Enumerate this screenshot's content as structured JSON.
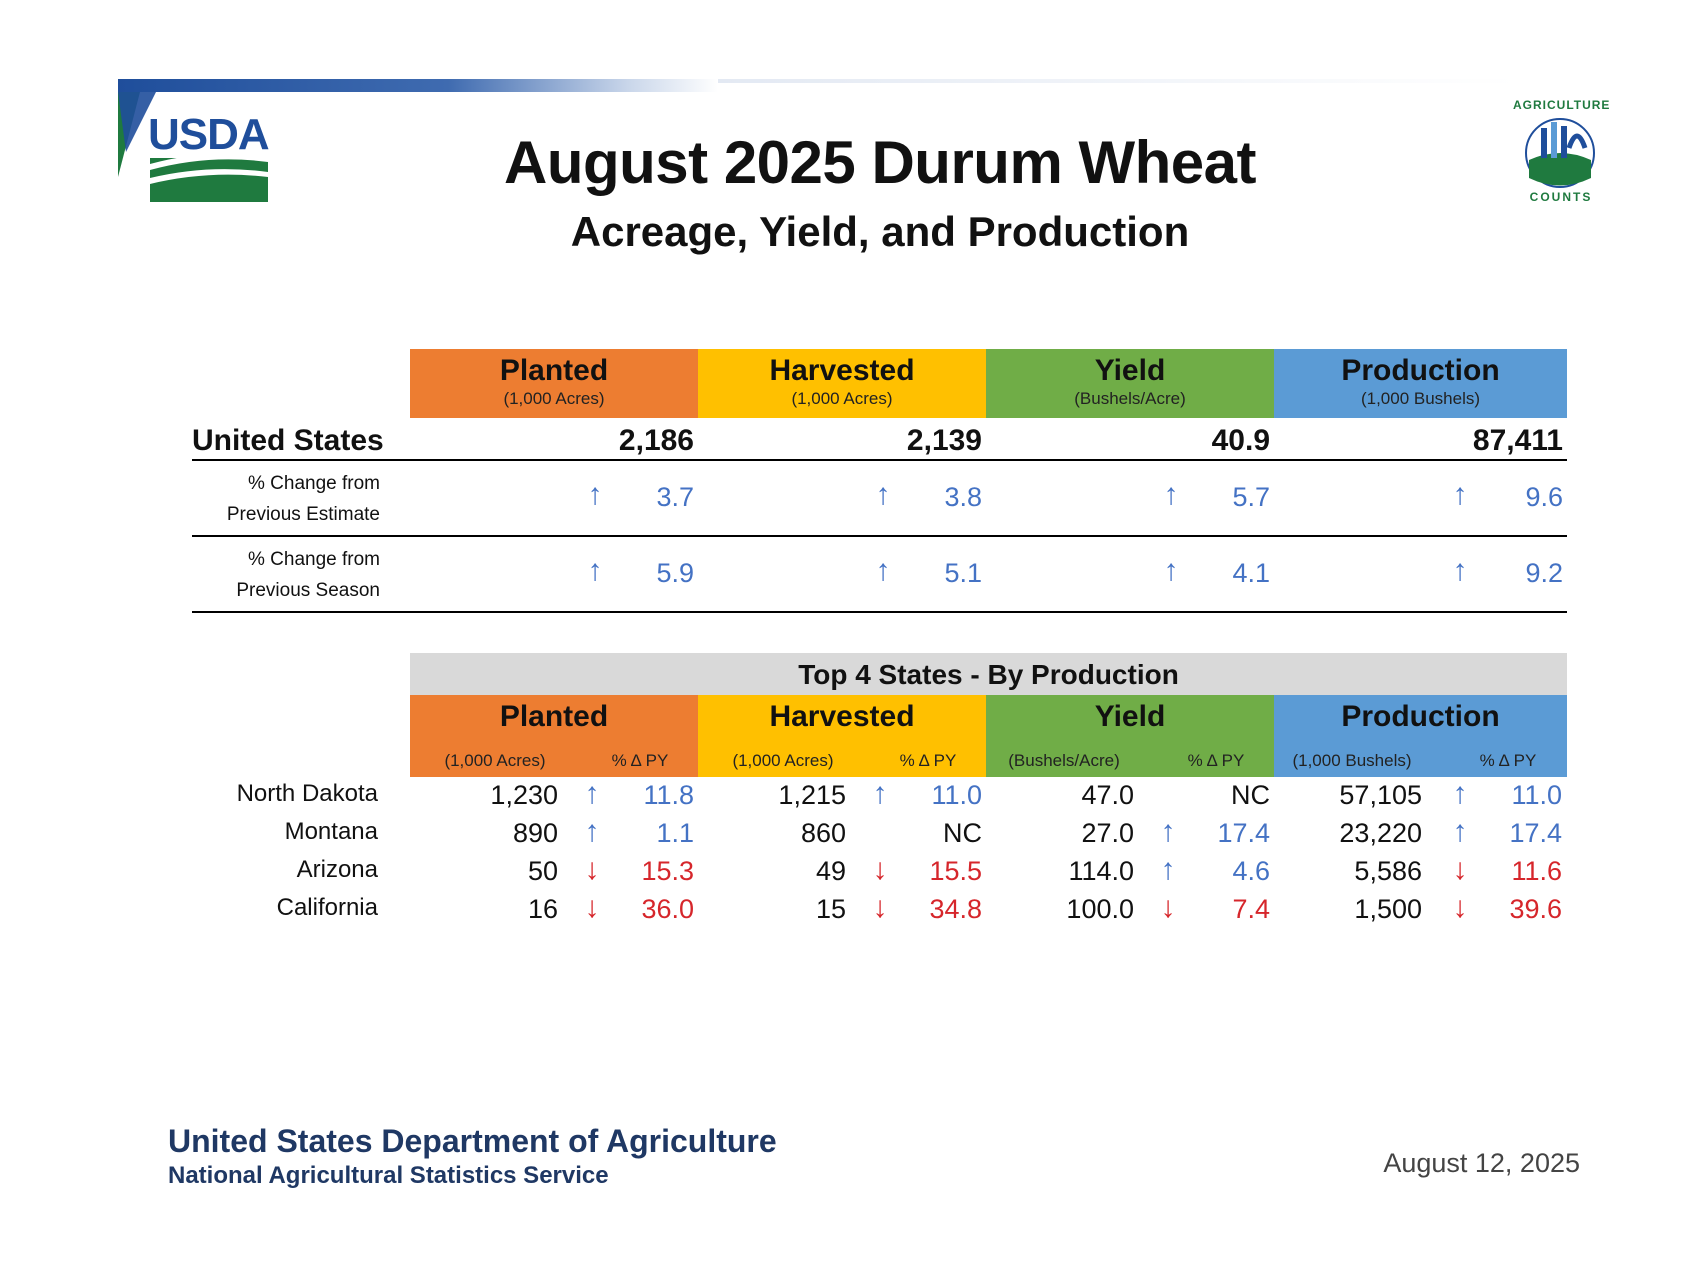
{
  "header": {
    "usda_logo_text": "USDA",
    "title": "August 2025 Durum Wheat",
    "subtitle": "Acreage, Yield, and Production",
    "seal_text_top": "AGRICULTURE",
    "seal_text_bottom": "COUNTS"
  },
  "colors": {
    "planted": "#ed7d31",
    "harvested": "#ffc000",
    "yield": "#70ad47",
    "production": "#5b9bd5",
    "increase": "#4472c4",
    "decrease": "#d6262b",
    "footer": "#1f3864"
  },
  "us_table": {
    "columns": [
      {
        "title": "Planted",
        "unit": "(1,000 Acres)"
      },
      {
        "title": "Harvested",
        "unit": "(1,000 Acres)"
      },
      {
        "title": "Yield",
        "unit": "(Bushels/Acre)"
      },
      {
        "title": "Production",
        "unit": "(1,000 Bushels)"
      }
    ],
    "label": "United States",
    "values": [
      "2,186",
      "2,139",
      "40.9",
      "87,411"
    ],
    "change_rows": [
      {
        "label_line1": "% Change from",
        "label_line2": "Previous Estimate",
        "arrow": "↑",
        "values": [
          "3.7",
          "3.8",
          "5.7",
          "9.6"
        ]
      },
      {
        "label_line1": "% Change from",
        "label_line2": "Previous Season",
        "arrow": "↑",
        "values": [
          "5.9",
          "5.1",
          "4.1",
          "9.2"
        ]
      }
    ]
  },
  "states_table": {
    "banner": "Top 4 States - By Production",
    "columns": [
      {
        "title": "Planted",
        "unit": "(1,000 Acres)",
        "pct": "% Δ PY"
      },
      {
        "title": "Harvested",
        "unit": "(1,000 Acres)",
        "pct": "% Δ PY"
      },
      {
        "title": "Yield",
        "unit": "(Bushels/Acre)",
        "pct": "% Δ PY"
      },
      {
        "title": "Production",
        "unit": "(1,000 Bushels)",
        "pct": "% Δ PY"
      }
    ],
    "rows": [
      {
        "state": "North Dakota",
        "cells": [
          {
            "value": "1,230",
            "arrow": "↑",
            "dir": "up",
            "pct": "11.8"
          },
          {
            "value": "1,215",
            "arrow": "↑",
            "dir": "up",
            "pct": "11.0"
          },
          {
            "value": "47.0",
            "arrow": "",
            "dir": "nc",
            "pct": "NC"
          },
          {
            "value": "57,105",
            "arrow": "↑",
            "dir": "up",
            "pct": "11.0"
          }
        ]
      },
      {
        "state": "Montana",
        "cells": [
          {
            "value": "890",
            "arrow": "↑",
            "dir": "up",
            "pct": "1.1"
          },
          {
            "value": "860",
            "arrow": "",
            "dir": "nc",
            "pct": "NC"
          },
          {
            "value": "27.0",
            "arrow": "↑",
            "dir": "up",
            "pct": "17.4"
          },
          {
            "value": "23,220",
            "arrow": "↑",
            "dir": "up",
            "pct": "17.4"
          }
        ]
      },
      {
        "state": "Arizona",
        "cells": [
          {
            "value": "50",
            "arrow": "↓",
            "dir": "down",
            "pct": "15.3"
          },
          {
            "value": "49",
            "arrow": "↓",
            "dir": "down",
            "pct": "15.5"
          },
          {
            "value": "114.0",
            "arrow": "↑",
            "dir": "up",
            "pct": "4.6"
          },
          {
            "value": "5,586",
            "arrow": "↓",
            "dir": "down",
            "pct": "11.6"
          }
        ]
      },
      {
        "state": "California",
        "cells": [
          {
            "value": "16",
            "arrow": "↓",
            "dir": "down",
            "pct": "36.0"
          },
          {
            "value": "15",
            "arrow": "↓",
            "dir": "down",
            "pct": "34.8"
          },
          {
            "value": "100.0",
            "arrow": "↓",
            "dir": "down",
            "pct": "7.4"
          },
          {
            "value": "1,500",
            "arrow": "↓",
            "dir": "down",
            "pct": "39.6"
          }
        ]
      }
    ]
  },
  "footer": {
    "agency_line1": "United States Department of Agriculture",
    "agency_line2": "National Agricultural Statistics Service",
    "date": "August 12, 2025"
  }
}
